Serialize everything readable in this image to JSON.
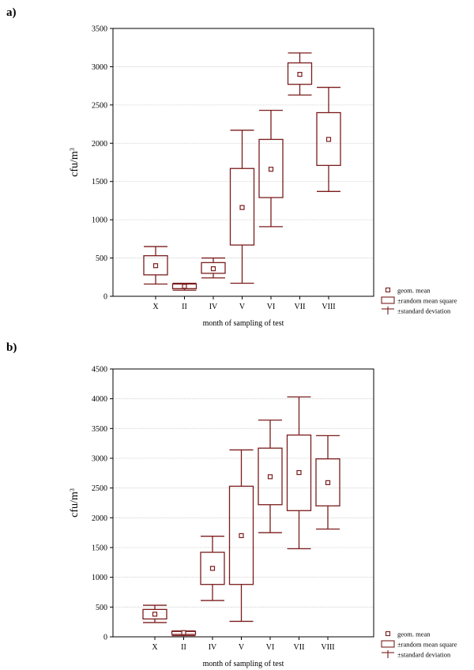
{
  "panels": [
    {
      "label": "a)"
    },
    {
      "label": "b)"
    }
  ],
  "chart_data": [
    {
      "type": "box",
      "categories": [
        "X",
        "II",
        "IV",
        "V",
        "VI",
        "VII",
        "VIII"
      ],
      "xlabel": "month of sampling of test",
      "ylabel": "cfu/m",
      "ylabel_sup": "3",
      "ylim": [
        0,
        3500
      ],
      "yticks": [
        0,
        500,
        1000,
        1500,
        2000,
        2500,
        3000,
        3500
      ],
      "grid": true,
      "legend_position": "bottom-right",
      "legend": [
        "geom. mean",
        "±random mean square",
        "±standard deviation"
      ],
      "series": [
        {
          "mean": 400,
          "box_low": 280,
          "box_high": 530,
          "whisker_low": 160,
          "whisker_high": 650
        },
        {
          "mean": 130,
          "box_low": 100,
          "box_high": 160,
          "whisker_low": 80,
          "whisker_high": 170
        },
        {
          "mean": 360,
          "box_low": 300,
          "box_high": 440,
          "whisker_low": 240,
          "whisker_high": 500
        },
        {
          "mean": 1160,
          "box_low": 670,
          "box_high": 1670,
          "whisker_low": 170,
          "whisker_high": 2170
        },
        {
          "mean": 1660,
          "box_low": 1290,
          "box_high": 2050,
          "whisker_low": 910,
          "whisker_high": 2430
        },
        {
          "mean": 2900,
          "box_low": 2770,
          "box_high": 3050,
          "whisker_low": 2630,
          "whisker_high": 3180
        },
        {
          "mean": 2050,
          "box_low": 1710,
          "box_high": 2400,
          "whisker_low": 1370,
          "whisker_high": 2730
        }
      ]
    },
    {
      "type": "box",
      "categories": [
        "X",
        "II",
        "IV",
        "V",
        "VI",
        "VII",
        "VIII"
      ],
      "xlabel": "month of sampling of test",
      "ylabel": "cfu/m",
      "ylabel_sup": "3",
      "ylim": [
        0,
        4500
      ],
      "yticks": [
        0,
        500,
        1000,
        1500,
        2000,
        2500,
        3000,
        3500,
        4000,
        4500
      ],
      "grid": true,
      "legend_position": "bottom-right",
      "legend": [
        "geom. mean",
        "±random mean square",
        "±standard deviation"
      ],
      "series": [
        {
          "mean": 380,
          "box_low": 300,
          "box_high": 460,
          "whisker_low": 240,
          "whisker_high": 530
        },
        {
          "mean": 70,
          "box_low": 40,
          "box_high": 90,
          "whisker_low": 20,
          "whisker_high": 100
        },
        {
          "mean": 1150,
          "box_low": 880,
          "box_high": 1420,
          "whisker_low": 610,
          "whisker_high": 1690
        },
        {
          "mean": 1700,
          "box_low": 880,
          "box_high": 2530,
          "whisker_low": 260,
          "whisker_high": 3140
        },
        {
          "mean": 2690,
          "box_low": 2220,
          "box_high": 3170,
          "whisker_low": 1750,
          "whisker_high": 3640
        },
        {
          "mean": 2760,
          "box_low": 2120,
          "box_high": 3390,
          "whisker_low": 1480,
          "whisker_high": 4030
        },
        {
          "mean": 2590,
          "box_low": 2200,
          "box_high": 2990,
          "whisker_low": 1810,
          "whisker_high": 3380
        }
      ]
    }
  ],
  "colors": {
    "mark": "#7b1c1c",
    "axis": "#000000",
    "grid": "#c8c8c8"
  }
}
